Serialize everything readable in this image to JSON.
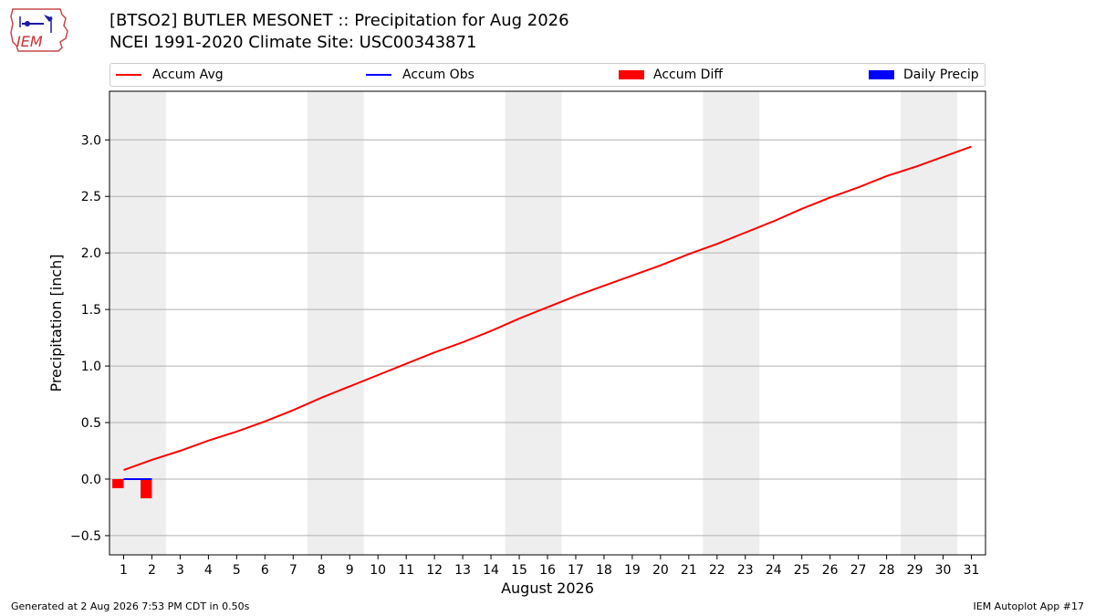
{
  "header": {
    "title_line1": "[BTSO2] BUTLER MESONET :: Precipitation for Aug 2026",
    "title_line2": "NCEI 1991-2020 Climate Site: USC00343871",
    "logo_text": "IEM"
  },
  "legend": {
    "accum_avg": "Accum Avg",
    "accum_obs": "Accum Obs",
    "accum_diff": "Accum Diff",
    "daily_precip": "Daily Precip"
  },
  "colors": {
    "accum_avg": "#ff0000",
    "accum_obs": "#0000ff",
    "accum_diff": "#ff0000",
    "daily_precip": "#0000ff",
    "weekend_shade": "#eeeeee",
    "grid": "#b0b0b0"
  },
  "footer": {
    "left": "Generated at 2 Aug 2026 7:53 PM CDT in 0.50s",
    "right": "IEM Autoplot App #17"
  },
  "chart_data": {
    "type": "line",
    "xlabel": "August 2026",
    "ylabel": "Precipitation [inch]",
    "xlim": [
      0.5,
      31.5
    ],
    "ylim": [
      -0.67,
      3.43
    ],
    "yticks": [
      -0.5,
      0.0,
      0.5,
      1.0,
      1.5,
      2.0,
      2.5,
      3.0
    ],
    "ytick_labels": [
      "−0.5",
      "0.0",
      "0.5",
      "1.0",
      "1.5",
      "2.0",
      "2.5",
      "3.0"
    ],
    "xticks": [
      1,
      2,
      3,
      4,
      5,
      6,
      7,
      8,
      9,
      10,
      11,
      12,
      13,
      14,
      15,
      16,
      17,
      18,
      19,
      20,
      21,
      22,
      23,
      24,
      25,
      26,
      27,
      28,
      29,
      30,
      31
    ],
    "grid": "y",
    "legend_position": "top",
    "weekend_spans": [
      [
        0.5,
        2.5
      ],
      [
        7.5,
        9.5
      ],
      [
        14.5,
        16.5
      ],
      [
        21.5,
        23.5
      ],
      [
        28.5,
        30.5
      ]
    ],
    "series": [
      {
        "name": "Accum Avg",
        "kind": "line",
        "x": [
          1,
          2,
          3,
          4,
          5,
          6,
          7,
          8,
          9,
          10,
          11,
          12,
          13,
          14,
          15,
          16,
          17,
          18,
          19,
          20,
          21,
          22,
          23,
          24,
          25,
          26,
          27,
          28,
          29,
          30,
          31
        ],
        "values": [
          0.08,
          0.17,
          0.25,
          0.34,
          0.42,
          0.51,
          0.61,
          0.72,
          0.82,
          0.92,
          1.02,
          1.12,
          1.21,
          1.31,
          1.42,
          1.52,
          1.62,
          1.71,
          1.8,
          1.89,
          1.99,
          2.08,
          2.18,
          2.28,
          2.39,
          2.49,
          2.58,
          2.68,
          2.76,
          2.85,
          2.94
        ]
      },
      {
        "name": "Accum Obs",
        "kind": "line",
        "x": [
          1,
          2
        ],
        "values": [
          0.0,
          0.0
        ]
      },
      {
        "name": "Accum Diff",
        "kind": "bar",
        "x": [
          1,
          2
        ],
        "values": [
          -0.08,
          -0.17
        ]
      },
      {
        "name": "Daily Precip",
        "kind": "bar",
        "x": [
          1,
          2
        ],
        "values": [
          0.0,
          0.0
        ]
      }
    ]
  }
}
